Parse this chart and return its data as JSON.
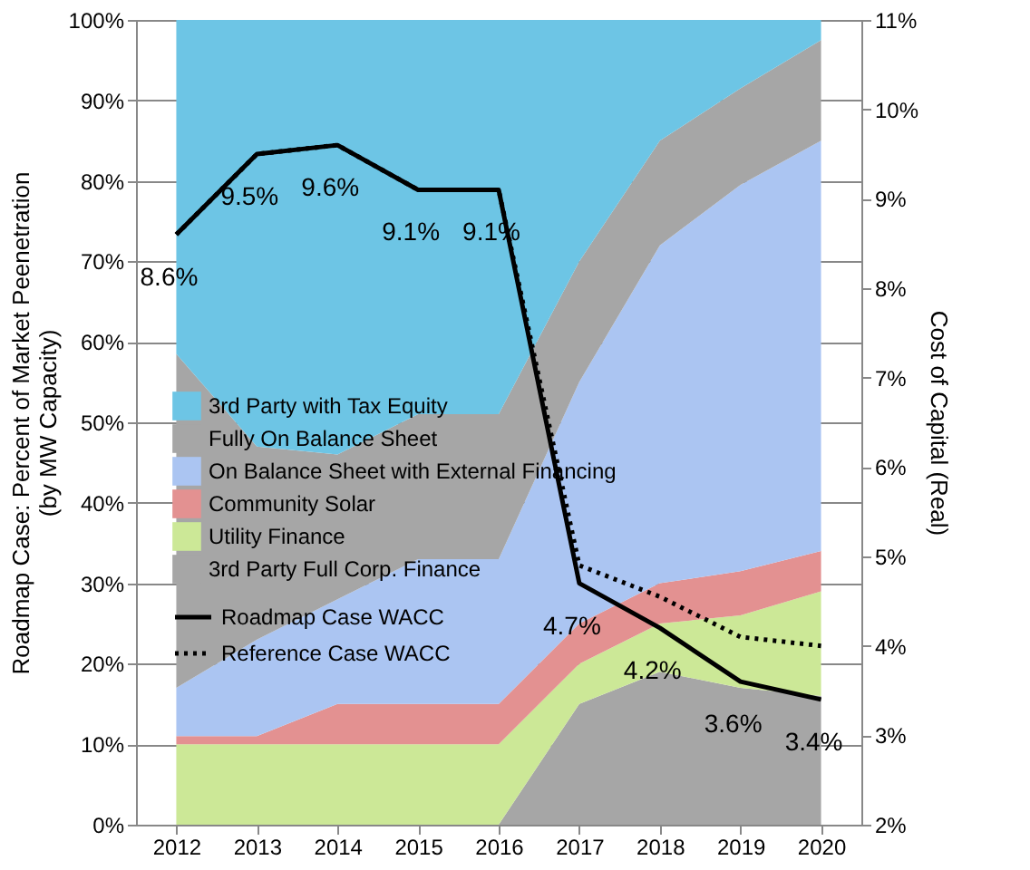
{
  "chart_data": {
    "type": "area",
    "stacked": true,
    "categories": [
      "2012",
      "2013",
      "2014",
      "2015",
      "2016",
      "2017",
      "2018",
      "2019",
      "2020"
    ],
    "ylabel": "Roadmap Case: Percent of Market Peenetration\n(by MW Capacity)",
    "y2label": "Cost of Capital (Real)",
    "ylim": [
      0,
      100
    ],
    "yticks": [
      {
        "value": 0,
        "label": "0%"
      },
      {
        "value": 10,
        "label": "10%"
      },
      {
        "value": 20,
        "label": "20%"
      },
      {
        "value": 30,
        "label": "30%"
      },
      {
        "value": 40,
        "label": "40%"
      },
      {
        "value": 50,
        "label": "50%"
      },
      {
        "value": 60,
        "label": "60%"
      },
      {
        "value": 70,
        "label": "70%"
      },
      {
        "value": 80,
        "label": "80%"
      },
      {
        "value": 90,
        "label": "90%"
      },
      {
        "value": 100,
        "label": "100%"
      }
    ],
    "y2lim": [
      2,
      11
    ],
    "y2ticks": [
      {
        "value": 2,
        "label": "2%"
      },
      {
        "value": 3,
        "label": "3%"
      },
      {
        "value": 4,
        "label": "4%"
      },
      {
        "value": 5,
        "label": "5%"
      },
      {
        "value": 6,
        "label": "6%"
      },
      {
        "value": 7,
        "label": "7%"
      },
      {
        "value": 8,
        "label": "8%"
      },
      {
        "value": 9,
        "label": "9%"
      },
      {
        "value": 10,
        "label": "10%"
      },
      {
        "value": 11,
        "label": "11%"
      }
    ],
    "grid": "y",
    "legend": "left",
    "marker": "none",
    "series": [
      {
        "name": "3rd Party Full Corp. Finance",
        "color": "#a6a6a6",
        "values": [
          0,
          0,
          0,
          0,
          0,
          15,
          19,
          17,
          16
        ]
      },
      {
        "name": "Utility Finance",
        "color": "#cce897",
        "values": [
          10,
          10,
          10,
          10,
          10,
          5,
          6,
          9,
          13
        ]
      },
      {
        "name": "Community Solar",
        "color": "#e39191",
        "values": [
          1,
          1,
          5,
          5,
          5,
          5,
          5,
          5.5,
          5
        ]
      },
      {
        "name": "On Balance Sheet with External Financing",
        "color": "#abc5f2",
        "values": [
          6,
          12,
          13,
          18,
          18,
          30,
          42,
          48,
          51
        ]
      },
      {
        "name": "Fully On Balance Sheet",
        "color": "#a6a6a6",
        "values": [
          41.5,
          24,
          18,
          18,
          18,
          15,
          13,
          12,
          12.5
        ]
      },
      {
        "name": "3rd Party with Tax Equity",
        "color": "#6dc5e5",
        "values": [
          41.5,
          53,
          54,
          49,
          49,
          30,
          15,
          8.5,
          2.5
        ]
      },
      {
        "name": "Roadmap Case WACC",
        "type": "line",
        "axis": "y2",
        "line_style": "solid",
        "color": "#000000",
        "values": [
          8.6,
          9.5,
          9.6,
          9.1,
          9.1,
          4.7,
          4.2,
          3.6,
          3.4
        ],
        "value_labels": [
          "8.6%",
          "9.5%",
          "9.6%",
          "9.1%",
          "9.1%",
          "4.7%",
          "4.2%",
          "3.6%",
          "3.4%"
        ]
      },
      {
        "name": "Reference Case WACC",
        "type": "line",
        "axis": "y2",
        "line_style": "dotted",
        "color": "#000000",
        "values": [
          8.6,
          9.5,
          9.6,
          9.1,
          9.1,
          4.9,
          4.55,
          4.1,
          4.0
        ]
      }
    ]
  }
}
